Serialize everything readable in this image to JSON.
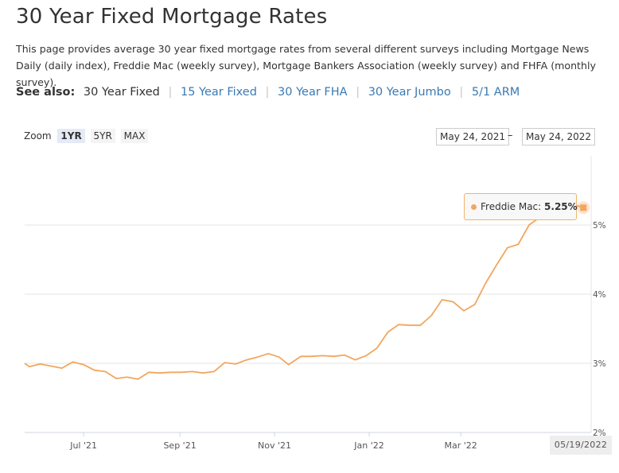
{
  "page": {
    "title": "30 Year Fixed Mortgage Rates",
    "intro": "This page provides average 30 year fixed mortgage rates from several different surveys including Mortgage News Daily (daily index), Freddie Mac (weekly survey), Mortgage Bankers Association (weekly survey) and FHFA (monthly survey)."
  },
  "see_also": {
    "label": "See also:",
    "current": "30 Year Fixed",
    "links": [
      "15 Year Fixed",
      "30 Year FHA",
      "30 Year Jumbo",
      "5/1 ARM"
    ],
    "separator": "|"
  },
  "zoom": {
    "label": "Zoom",
    "buttons": [
      "1YR",
      "5YR",
      "MAX"
    ],
    "active": "1YR"
  },
  "range": {
    "from": "May 24, 2021",
    "dash": "–",
    "to": "May 24, 2022"
  },
  "tooltip": {
    "series": "Freddie Mac:",
    "value": "5.25%"
  },
  "hover_date": "05/19/2022",
  "colors": {
    "series": "#f2a65e",
    "link": "#3a7ab2",
    "grid": "#e6e6e6"
  },
  "chart_data": {
    "type": "line",
    "series": [
      {
        "name": "Freddie Mac",
        "x": [
          "2021-05-20",
          "2021-05-27",
          "2021-06-03",
          "2021-06-10",
          "2021-06-17",
          "2021-06-24",
          "2021-07-01",
          "2021-07-08",
          "2021-07-15",
          "2021-07-22",
          "2021-07-29",
          "2021-08-05",
          "2021-08-12",
          "2021-08-19",
          "2021-08-26",
          "2021-09-02",
          "2021-09-09",
          "2021-09-16",
          "2021-09-23",
          "2021-09-30",
          "2021-10-07",
          "2021-10-14",
          "2021-10-21",
          "2021-10-28",
          "2021-11-04",
          "2021-11-10",
          "2021-11-18",
          "2021-11-24",
          "2021-12-02",
          "2021-12-09",
          "2021-12-16",
          "2021-12-23",
          "2021-12-30",
          "2022-01-06",
          "2022-01-13",
          "2022-01-20",
          "2022-01-27",
          "2022-02-03",
          "2022-02-10",
          "2022-02-17",
          "2022-02-24",
          "2022-03-03",
          "2022-03-10",
          "2022-03-17",
          "2022-03-24",
          "2022-03-31",
          "2022-04-07",
          "2022-04-14",
          "2022-04-21",
          "2022-04-28",
          "2022-05-05",
          "2022-05-12",
          "2022-05-19"
        ],
        "values": [
          3.0,
          2.95,
          2.99,
          2.96,
          2.93,
          3.02,
          2.98,
          2.9,
          2.88,
          2.78,
          2.8,
          2.77,
          2.87,
          2.86,
          2.87,
          2.87,
          2.88,
          2.86,
          2.88,
          3.01,
          2.99,
          3.05,
          3.09,
          3.14,
          3.09,
          2.98,
          3.1,
          3.1,
          3.11,
          3.1,
          3.12,
          3.05,
          3.11,
          3.22,
          3.45,
          3.56,
          3.55,
          3.55,
          3.69,
          3.92,
          3.89,
          3.76,
          3.85,
          4.16,
          4.42,
          4.67,
          4.72,
          5.0,
          5.11,
          5.1,
          5.27,
          5.3,
          5.25
        ]
      }
    ],
    "x_tick_labels": [
      "Jul '21",
      "Sep '21",
      "Nov '21",
      "Jan '22",
      "Mar '22"
    ],
    "x_ticks": [
      "2021-07-01",
      "2021-09-01",
      "2021-11-01",
      "2022-01-01",
      "2022-03-01"
    ],
    "y_tick_labels": [
      "2%",
      "3%",
      "4%",
      "5%"
    ],
    "y_ticks": [
      2,
      3,
      4,
      5
    ],
    "ylim": [
      2,
      6
    ],
    "xlim": [
      "2021-05-24",
      "2022-05-24"
    ],
    "y_axis_side": "right",
    "grid": true,
    "title": "",
    "xlabel": "",
    "ylabel": ""
  }
}
